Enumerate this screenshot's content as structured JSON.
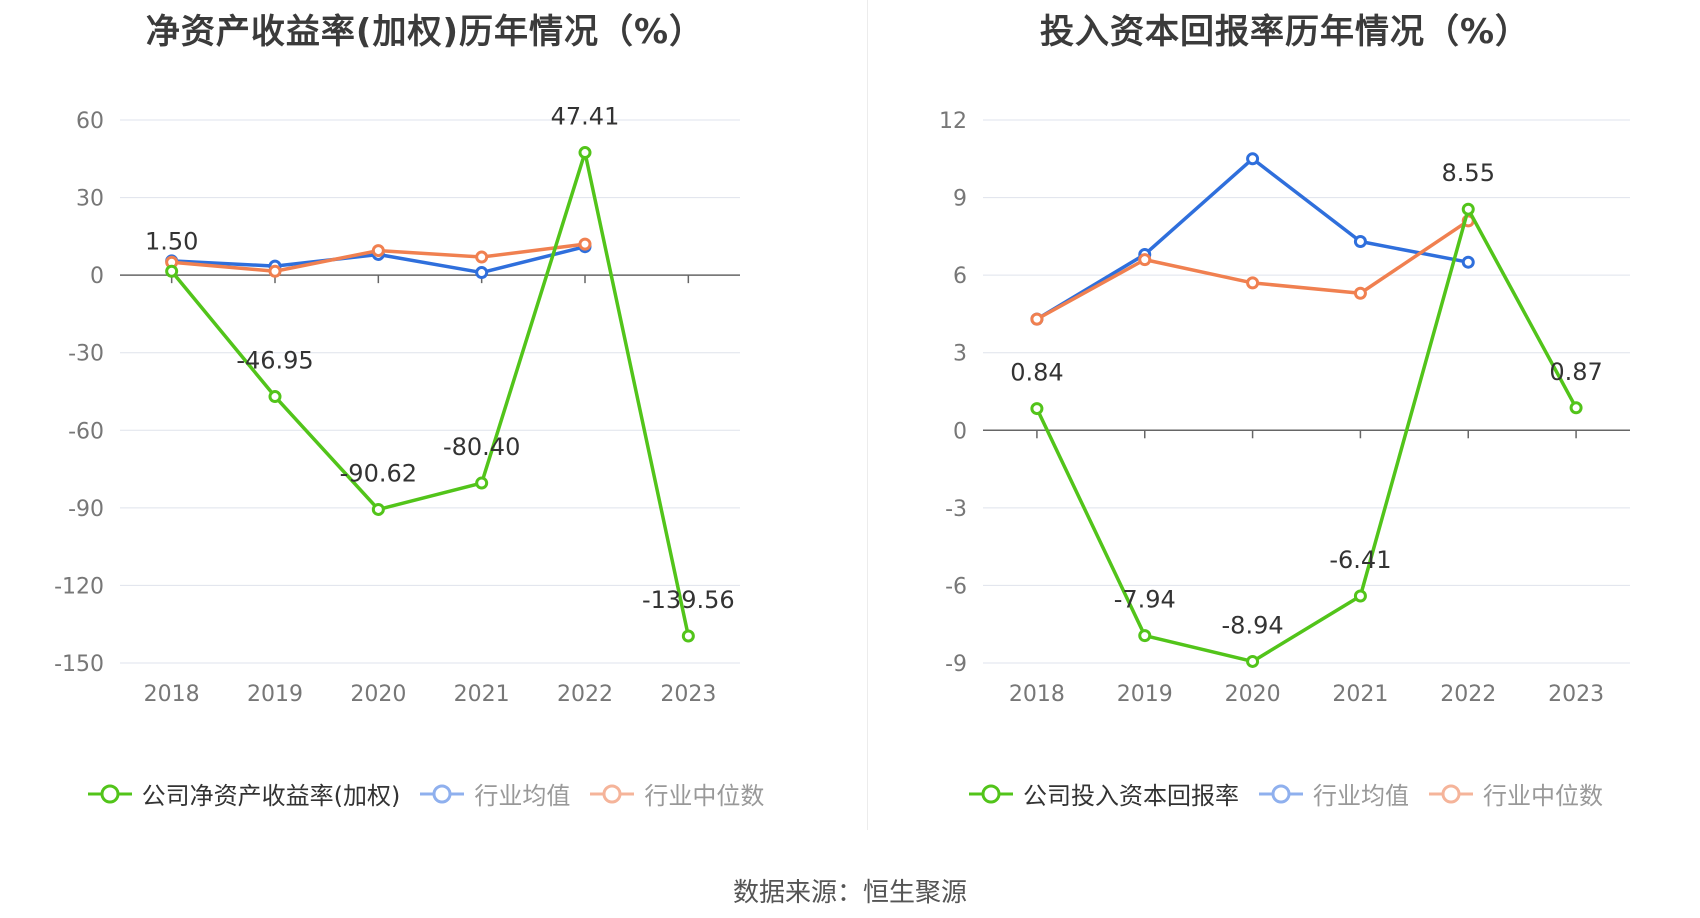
{
  "source": "数据来源：恒生聚源",
  "chart_data": [
    {
      "type": "line",
      "title": "净资产收益率(加权)历年情况（%）",
      "categories": [
        "2018",
        "2019",
        "2020",
        "2021",
        "2022",
        "2023"
      ],
      "ylim": [
        -150,
        60
      ],
      "yticks": [
        60,
        30,
        0,
        -30,
        -60,
        -90,
        -120,
        -150
      ],
      "grid": true,
      "legend_position": "bottom",
      "series": [
        {
          "name": "公司净资产收益率(加权)",
          "color": "#52c41a",
          "values": [
            1.5,
            -46.95,
            -90.62,
            -80.4,
            47.41,
            -139.56
          ],
          "labels": [
            "1.50",
            "-46.95",
            "-90.62",
            "-80.40",
            "47.41",
            "-139.56"
          ]
        },
        {
          "name": "行业均值",
          "color": "#2f6fdc",
          "values": [
            5.5,
            3.5,
            8.0,
            1.0,
            11.0,
            null
          ]
        },
        {
          "name": "行业中位数",
          "color": "#f08050",
          "values": [
            5.0,
            1.5,
            9.5,
            7.0,
            12.0,
            null
          ]
        }
      ]
    },
    {
      "type": "line",
      "title": "投入资本回报率历年情况（%）",
      "categories": [
        "2018",
        "2019",
        "2020",
        "2021",
        "2022",
        "2023"
      ],
      "ylim": [
        -9,
        12
      ],
      "yticks": [
        12,
        9,
        6,
        3,
        0,
        -3,
        -6,
        -9
      ],
      "grid": true,
      "legend_position": "bottom",
      "series": [
        {
          "name": "公司投入资本回报率",
          "color": "#52c41a",
          "values": [
            0.84,
            -7.94,
            -8.94,
            -6.41,
            8.55,
            0.87
          ],
          "labels": [
            "0.84",
            "-7.94",
            "-8.94",
            "-6.41",
            "8.55",
            "0.87"
          ]
        },
        {
          "name": "行业均值",
          "color": "#2f6fdc",
          "values": [
            4.3,
            6.8,
            10.5,
            7.3,
            6.5,
            null
          ]
        },
        {
          "name": "行业中位数",
          "color": "#f08050",
          "values": [
            4.3,
            6.6,
            5.7,
            5.3,
            8.1,
            null
          ]
        }
      ]
    }
  ]
}
